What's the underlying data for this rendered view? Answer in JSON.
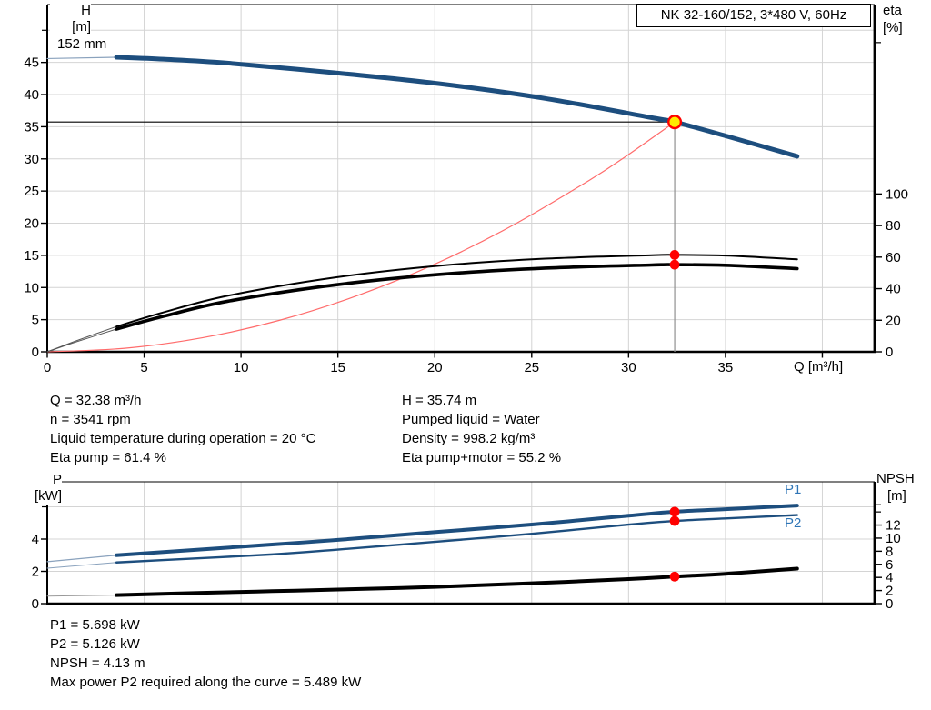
{
  "chart_data": [
    {
      "id": "head-efficiency-chart",
      "type": "line",
      "title": "NK 32-160/152, 3*480 V, 60Hz",
      "curve_label": "152 mm",
      "x_axis": {
        "label": "Q [m³/h]",
        "ticks": [
          0,
          5,
          10,
          15,
          20,
          25,
          30,
          35
        ],
        "grid": [
          5,
          10,
          15,
          20,
          25,
          30,
          35,
          40
        ],
        "unit_tick": 40,
        "max": 42.7
      },
      "y_left": {
        "name": "H",
        "unit": "[m]",
        "ticks": [
          0,
          5,
          10,
          15,
          20,
          25,
          30,
          35,
          40,
          45
        ],
        "minor": [
          50
        ],
        "grid": [
          5,
          10,
          15,
          20,
          25,
          30,
          35,
          40,
          45,
          50
        ],
        "max": 54
      },
      "y_right": {
        "name": "eta",
        "unit": "[%]",
        "ticks": [
          0,
          20,
          40,
          60,
          80,
          100
        ],
        "minor": [
          195.9
        ],
        "max": 220
      },
      "series": [
        {
          "name": "pump-curve-lead-in",
          "axis": "left",
          "color": "#8aa2bd",
          "width": 1.2,
          "points": [
            [
              0,
              45.6
            ],
            [
              3.57,
              45.8
            ]
          ]
        },
        {
          "name": "pump-curve-152mm",
          "axis": "left",
          "color": "#1d4e7e",
          "width": 5,
          "points": [
            [
              3.57,
              45.8
            ],
            [
              6,
              45.5
            ],
            [
              9.3,
              44.9
            ],
            [
              14.8,
              43.4
            ],
            [
              20.2,
              41.7
            ],
            [
              25.7,
              39.4
            ],
            [
              31.2,
              36.4
            ],
            [
              32.38,
              35.74
            ],
            [
              35.1,
              33.5
            ],
            [
              38.7,
              30.4
            ]
          ]
        },
        {
          "name": "system-curve",
          "axis": "left",
          "color": "#ff6b6b",
          "width": 1.2,
          "points": [
            [
              0,
              0
            ],
            [
              4,
              0.55
            ],
            [
              8,
              2.18
            ],
            [
              12,
              4.91
            ],
            [
              16,
              8.73
            ],
            [
              20,
              13.63
            ],
            [
              24,
              19.63
            ],
            [
              28,
              26.72
            ],
            [
              30,
              30.68
            ],
            [
              32.38,
              35.74
            ]
          ]
        },
        {
          "name": "eta-pump-lead-in",
          "axis": "right",
          "color": "#555555",
          "width": 1,
          "points": [
            [
              0,
              0
            ],
            [
              1.5,
              7
            ],
            [
              3.57,
              16
            ]
          ]
        },
        {
          "name": "eta-pump-curve",
          "axis": "right",
          "color": "#000000",
          "width": 2,
          "points": [
            [
              3.57,
              16
            ],
            [
              6,
              25
            ],
            [
              9.3,
              35.5
            ],
            [
              14.8,
              47
            ],
            [
              20.2,
              54.5
            ],
            [
              25.7,
              59
            ],
            [
              31.2,
              61.2
            ],
            [
              32.38,
              61.4
            ],
            [
              35,
              61
            ],
            [
              38.7,
              58.6
            ]
          ]
        },
        {
          "name": "eta-pump-motor-lead-in",
          "axis": "right",
          "color": "#555555",
          "width": 1,
          "points": [
            [
              0,
              0
            ],
            [
              1.5,
              6.3
            ],
            [
              3.57,
              14.4
            ]
          ]
        },
        {
          "name": "eta-pump-motor-curve",
          "axis": "right",
          "color": "#000000",
          "width": 3.6,
          "points": [
            [
              3.57,
              14.4
            ],
            [
              6,
              22.5
            ],
            [
              9.3,
              32
            ],
            [
              14.8,
              42.3
            ],
            [
              20.2,
              49
            ],
            [
              25.7,
              53
            ],
            [
              31.2,
              55
            ],
            [
              32.38,
              55.2
            ],
            [
              35,
              54.8
            ],
            [
              38.7,
              52.7
            ]
          ]
        }
      ],
      "duty_point": {
        "q": 32.38,
        "value": 35.74,
        "axis": "left"
      },
      "dots": [
        {
          "q": 32.38,
          "value": 61.4,
          "axis": "right"
        },
        {
          "q": 32.38,
          "value": 55.2,
          "axis": "right"
        }
      ]
    },
    {
      "id": "power-npsh-chart",
      "type": "line",
      "x_axis": {
        "ticks": [],
        "grid": [
          5,
          10,
          15,
          20,
          25,
          30,
          35,
          40
        ],
        "max": 42.7
      },
      "y_left": {
        "name": "P",
        "unit": "[kW]",
        "ticks": [
          0,
          2,
          4
        ],
        "minor": [
          6
        ],
        "grid": [
          2,
          4,
          6
        ],
        "max": 7.55
      },
      "y_right": {
        "name": "NPSH",
        "unit": "[m]",
        "ticks": [
          0,
          2,
          4,
          6,
          8,
          10,
          12
        ],
        "minor": [
          14,
          15.1
        ],
        "max": 18.6
      },
      "labels": {
        "p1": "P1",
        "p2": "P2"
      },
      "series": [
        {
          "name": "p1-lead-in",
          "axis": "left",
          "color": "#8aa2bd",
          "width": 1.2,
          "points": [
            [
              0,
              2.6
            ],
            [
              3.57,
              3.0
            ]
          ]
        },
        {
          "name": "p1-curve",
          "axis": "left",
          "color": "#1d4e7e",
          "width": 4,
          "points": [
            [
              3.57,
              3.0
            ],
            [
              6,
              3.2
            ],
            [
              11.6,
              3.66
            ],
            [
              15,
              3.95
            ],
            [
              20.2,
              4.45
            ],
            [
              25,
              4.9
            ],
            [
              30,
              5.45
            ],
            [
              32.38,
              5.698
            ],
            [
              35,
              5.85
            ],
            [
              38.7,
              6.08
            ]
          ]
        },
        {
          "name": "p2-lead-in",
          "axis": "left",
          "color": "#8aa2bd",
          "width": 1,
          "points": [
            [
              0,
              2.2
            ],
            [
              3.57,
              2.55
            ]
          ]
        },
        {
          "name": "p2-curve",
          "axis": "left",
          "color": "#1d4e7e",
          "width": 2.4,
          "points": [
            [
              3.57,
              2.55
            ],
            [
              6,
              2.7
            ],
            [
              11.6,
              3.05
            ],
            [
              15,
              3.35
            ],
            [
              20.2,
              3.85
            ],
            [
              25,
              4.33
            ],
            [
              30,
              4.9
            ],
            [
              32.38,
              5.126
            ],
            [
              35,
              5.28
            ],
            [
              38.7,
              5.489
            ]
          ]
        },
        {
          "name": "npsh-lead-in",
          "axis": "right",
          "color": "#999999",
          "width": 1,
          "points": [
            [
              0,
              1.15
            ],
            [
              3.57,
              1.3
            ]
          ]
        },
        {
          "name": "npsh-curve",
          "axis": "right",
          "color": "#000000",
          "width": 4,
          "points": [
            [
              3.57,
              1.3
            ],
            [
              8,
              1.65
            ],
            [
              11.6,
              1.9
            ],
            [
              15,
              2.15
            ],
            [
              20,
              2.55
            ],
            [
              25,
              3.1
            ],
            [
              30,
              3.75
            ],
            [
              32.38,
              4.13
            ],
            [
              35,
              4.55
            ],
            [
              38.7,
              5.35
            ]
          ]
        }
      ],
      "dots": [
        {
          "q": 32.38,
          "value": 5.698,
          "axis": "left"
        },
        {
          "q": 32.38,
          "value": 5.126,
          "axis": "left"
        },
        {
          "q": 32.38,
          "value": 4.13,
          "axis": "right"
        }
      ]
    }
  ],
  "operating_data": {
    "left": [
      "Q = 32.38 m³/h",
      "n = 3541 rpm",
      "Liquid temperature during operation = 20 °C",
      "Eta pump = 61.4 %"
    ],
    "right": [
      "H = 35.74 m",
      "Pumped liquid = Water",
      "Density = 998.2 kg/m³",
      "Eta pump+motor = 55.2 %"
    ]
  },
  "power_data": [
    "P1 = 5.698 kW",
    "P2 = 5.126 kW",
    "NPSH = 4.13 m",
    "Max power P2 required along the curve = 5.489 kW"
  ],
  "colors": {
    "curve_blue": "#1d4e7e",
    "label_blue": "#2e75b6",
    "duty_red": "#ff0000",
    "duty_yellow": "#ffeb00",
    "grid": "#d4d4d4",
    "duty_guide_gray": "#909090"
  }
}
